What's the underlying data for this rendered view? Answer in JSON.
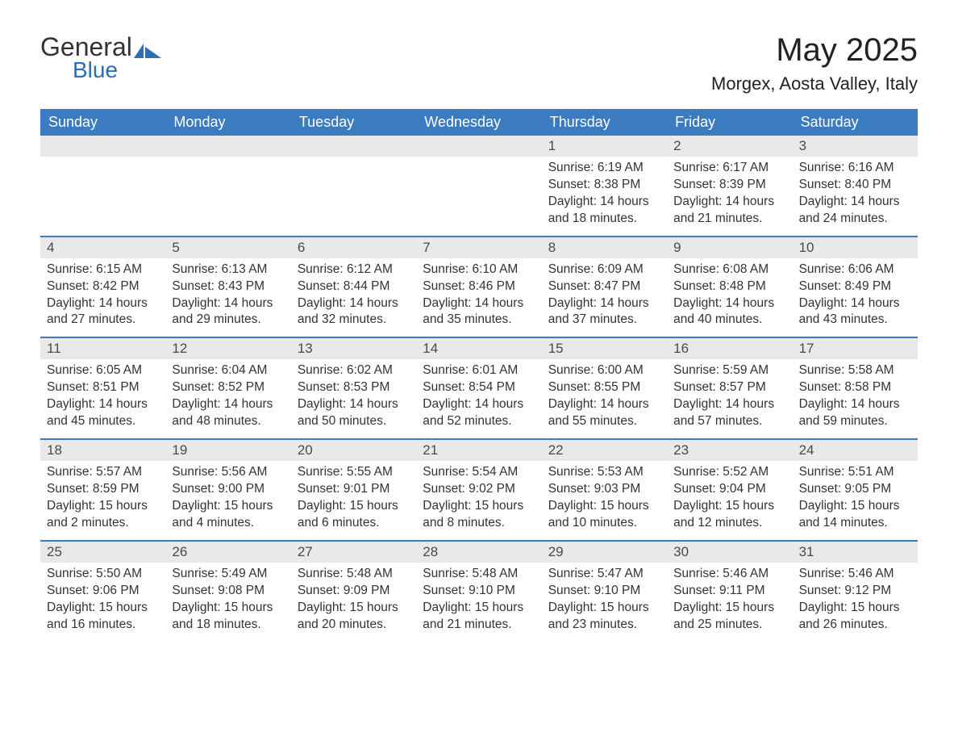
{
  "brand": {
    "part1": "General",
    "part2": "Blue"
  },
  "title": "May 2025",
  "location": "Morgex, Aosta Valley, Italy",
  "colors": {
    "header_bg": "#3b7bbf",
    "header_text": "#ffffff",
    "date_bar_bg": "#e9e9e9",
    "date_bar_text": "#4a4a4a",
    "body_text": "#333333",
    "brand_accent": "#2a6fb5",
    "page_bg": "#ffffff",
    "week_divider": "#3b7bbf"
  },
  "day_names": [
    "Sunday",
    "Monday",
    "Tuesday",
    "Wednesday",
    "Thursday",
    "Friday",
    "Saturday"
  ],
  "weeks": [
    [
      {
        "empty": true
      },
      {
        "empty": true
      },
      {
        "empty": true
      },
      {
        "empty": true
      },
      {
        "date": "1",
        "sunrise": "Sunrise: 6:19 AM",
        "sunset": "Sunset: 8:38 PM",
        "daylight1": "Daylight: 14 hours",
        "daylight2": "and 18 minutes."
      },
      {
        "date": "2",
        "sunrise": "Sunrise: 6:17 AM",
        "sunset": "Sunset: 8:39 PM",
        "daylight1": "Daylight: 14 hours",
        "daylight2": "and 21 minutes."
      },
      {
        "date": "3",
        "sunrise": "Sunrise: 6:16 AM",
        "sunset": "Sunset: 8:40 PM",
        "daylight1": "Daylight: 14 hours",
        "daylight2": "and 24 minutes."
      }
    ],
    [
      {
        "date": "4",
        "sunrise": "Sunrise: 6:15 AM",
        "sunset": "Sunset: 8:42 PM",
        "daylight1": "Daylight: 14 hours",
        "daylight2": "and 27 minutes."
      },
      {
        "date": "5",
        "sunrise": "Sunrise: 6:13 AM",
        "sunset": "Sunset: 8:43 PM",
        "daylight1": "Daylight: 14 hours",
        "daylight2": "and 29 minutes."
      },
      {
        "date": "6",
        "sunrise": "Sunrise: 6:12 AM",
        "sunset": "Sunset: 8:44 PM",
        "daylight1": "Daylight: 14 hours",
        "daylight2": "and 32 minutes."
      },
      {
        "date": "7",
        "sunrise": "Sunrise: 6:10 AM",
        "sunset": "Sunset: 8:46 PM",
        "daylight1": "Daylight: 14 hours",
        "daylight2": "and 35 minutes."
      },
      {
        "date": "8",
        "sunrise": "Sunrise: 6:09 AM",
        "sunset": "Sunset: 8:47 PM",
        "daylight1": "Daylight: 14 hours",
        "daylight2": "and 37 minutes."
      },
      {
        "date": "9",
        "sunrise": "Sunrise: 6:08 AM",
        "sunset": "Sunset: 8:48 PM",
        "daylight1": "Daylight: 14 hours",
        "daylight2": "and 40 minutes."
      },
      {
        "date": "10",
        "sunrise": "Sunrise: 6:06 AM",
        "sunset": "Sunset: 8:49 PM",
        "daylight1": "Daylight: 14 hours",
        "daylight2": "and 43 minutes."
      }
    ],
    [
      {
        "date": "11",
        "sunrise": "Sunrise: 6:05 AM",
        "sunset": "Sunset: 8:51 PM",
        "daylight1": "Daylight: 14 hours",
        "daylight2": "and 45 minutes."
      },
      {
        "date": "12",
        "sunrise": "Sunrise: 6:04 AM",
        "sunset": "Sunset: 8:52 PM",
        "daylight1": "Daylight: 14 hours",
        "daylight2": "and 48 minutes."
      },
      {
        "date": "13",
        "sunrise": "Sunrise: 6:02 AM",
        "sunset": "Sunset: 8:53 PM",
        "daylight1": "Daylight: 14 hours",
        "daylight2": "and 50 minutes."
      },
      {
        "date": "14",
        "sunrise": "Sunrise: 6:01 AM",
        "sunset": "Sunset: 8:54 PM",
        "daylight1": "Daylight: 14 hours",
        "daylight2": "and 52 minutes."
      },
      {
        "date": "15",
        "sunrise": "Sunrise: 6:00 AM",
        "sunset": "Sunset: 8:55 PM",
        "daylight1": "Daylight: 14 hours",
        "daylight2": "and 55 minutes."
      },
      {
        "date": "16",
        "sunrise": "Sunrise: 5:59 AM",
        "sunset": "Sunset: 8:57 PM",
        "daylight1": "Daylight: 14 hours",
        "daylight2": "and 57 minutes."
      },
      {
        "date": "17",
        "sunrise": "Sunrise: 5:58 AM",
        "sunset": "Sunset: 8:58 PM",
        "daylight1": "Daylight: 14 hours",
        "daylight2": "and 59 minutes."
      }
    ],
    [
      {
        "date": "18",
        "sunrise": "Sunrise: 5:57 AM",
        "sunset": "Sunset: 8:59 PM",
        "daylight1": "Daylight: 15 hours",
        "daylight2": "and 2 minutes."
      },
      {
        "date": "19",
        "sunrise": "Sunrise: 5:56 AM",
        "sunset": "Sunset: 9:00 PM",
        "daylight1": "Daylight: 15 hours",
        "daylight2": "and 4 minutes."
      },
      {
        "date": "20",
        "sunrise": "Sunrise: 5:55 AM",
        "sunset": "Sunset: 9:01 PM",
        "daylight1": "Daylight: 15 hours",
        "daylight2": "and 6 minutes."
      },
      {
        "date": "21",
        "sunrise": "Sunrise: 5:54 AM",
        "sunset": "Sunset: 9:02 PM",
        "daylight1": "Daylight: 15 hours",
        "daylight2": "and 8 minutes."
      },
      {
        "date": "22",
        "sunrise": "Sunrise: 5:53 AM",
        "sunset": "Sunset: 9:03 PM",
        "daylight1": "Daylight: 15 hours",
        "daylight2": "and 10 minutes."
      },
      {
        "date": "23",
        "sunrise": "Sunrise: 5:52 AM",
        "sunset": "Sunset: 9:04 PM",
        "daylight1": "Daylight: 15 hours",
        "daylight2": "and 12 minutes."
      },
      {
        "date": "24",
        "sunrise": "Sunrise: 5:51 AM",
        "sunset": "Sunset: 9:05 PM",
        "daylight1": "Daylight: 15 hours",
        "daylight2": "and 14 minutes."
      }
    ],
    [
      {
        "date": "25",
        "sunrise": "Sunrise: 5:50 AM",
        "sunset": "Sunset: 9:06 PM",
        "daylight1": "Daylight: 15 hours",
        "daylight2": "and 16 minutes."
      },
      {
        "date": "26",
        "sunrise": "Sunrise: 5:49 AM",
        "sunset": "Sunset: 9:08 PM",
        "daylight1": "Daylight: 15 hours",
        "daylight2": "and 18 minutes."
      },
      {
        "date": "27",
        "sunrise": "Sunrise: 5:48 AM",
        "sunset": "Sunset: 9:09 PM",
        "daylight1": "Daylight: 15 hours",
        "daylight2": "and 20 minutes."
      },
      {
        "date": "28",
        "sunrise": "Sunrise: 5:48 AM",
        "sunset": "Sunset: 9:10 PM",
        "daylight1": "Daylight: 15 hours",
        "daylight2": "and 21 minutes."
      },
      {
        "date": "29",
        "sunrise": "Sunrise: 5:47 AM",
        "sunset": "Sunset: 9:10 PM",
        "daylight1": "Daylight: 15 hours",
        "daylight2": "and 23 minutes."
      },
      {
        "date": "30",
        "sunrise": "Sunrise: 5:46 AM",
        "sunset": "Sunset: 9:11 PM",
        "daylight1": "Daylight: 15 hours",
        "daylight2": "and 25 minutes."
      },
      {
        "date": "31",
        "sunrise": "Sunrise: 5:46 AM",
        "sunset": "Sunset: 9:12 PM",
        "daylight1": "Daylight: 15 hours",
        "daylight2": "and 26 minutes."
      }
    ]
  ]
}
